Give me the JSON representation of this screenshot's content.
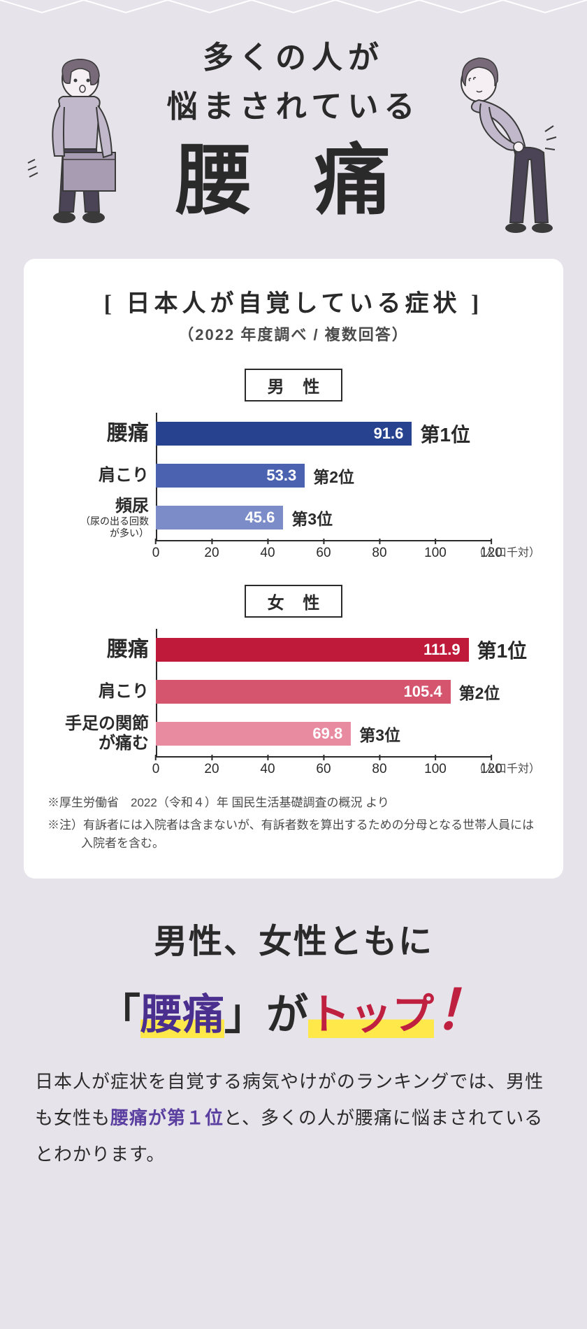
{
  "colors": {
    "page_bg": "#e7e3ea",
    "card_bg": "#ffffff",
    "text": "#2a2a2a",
    "accent_purple": "#4a2f8e",
    "accent_red": "#c02040",
    "highlight_yellow": "#ffe94a"
  },
  "header": {
    "line1": "多くの人が",
    "line2": "悩まされている",
    "big": "腰 痛"
  },
  "card": {
    "title_open": "[",
    "title": "日本人が自覚している症状",
    "title_close": "]",
    "subtitle": "（2022 年度調べ / 複数回答）"
  },
  "charts": {
    "x_unit": "（人口千対）",
    "xlim": [
      0,
      120
    ],
    "xtick_step": 20,
    "xticks": [
      "0",
      "20",
      "40",
      "60",
      "80",
      "100",
      "120"
    ],
    "male": {
      "label": "男 性",
      "bars": [
        {
          "name": "腰痛",
          "value": 91.6,
          "rank": "第1位",
          "color": "#27438f"
        },
        {
          "name": "肩こり",
          "value": 53.3,
          "rank": "第2位",
          "color": "#4b62b0"
        },
        {
          "name": "頻尿",
          "sub": "（尿の出る回数\nが多い）",
          "value": 45.6,
          "rank": "第3位",
          "color": "#7b8cc9"
        }
      ]
    },
    "female": {
      "label": "女 性",
      "bars": [
        {
          "name": "腰痛",
          "value": 111.9,
          "rank": "第1位",
          "color": "#c01a3a"
        },
        {
          "name": "肩こり",
          "value": 105.4,
          "rank": "第2位",
          "color": "#d6556e"
        },
        {
          "name": "手足の関節\nが痛む",
          "value": 69.8,
          "rank": "第3位",
          "color": "#e88aa0"
        }
      ]
    }
  },
  "notes": {
    "n1": "※厚生労働省　2022（令和４）年 国民生活基礎調査の概況 より",
    "n2": "※注）有訴者には入院者は含まないが、有訴者数を算出するための分母となる世帯人員には入院者を含む。"
  },
  "conclusion": {
    "line1": "男性、女性ともに",
    "l2_open": "「",
    "l2_hl": "腰痛",
    "l2_mid": "」が",
    "l2_top": "トップ",
    "l2_bang": "！",
    "body_pre": "日本人が症状を自覚する病気やけがのランキングでは、男性も女性も",
    "body_em": "腰痛が第１位",
    "body_post": "と、多くの人が腰痛に悩まされているとわかります。"
  }
}
